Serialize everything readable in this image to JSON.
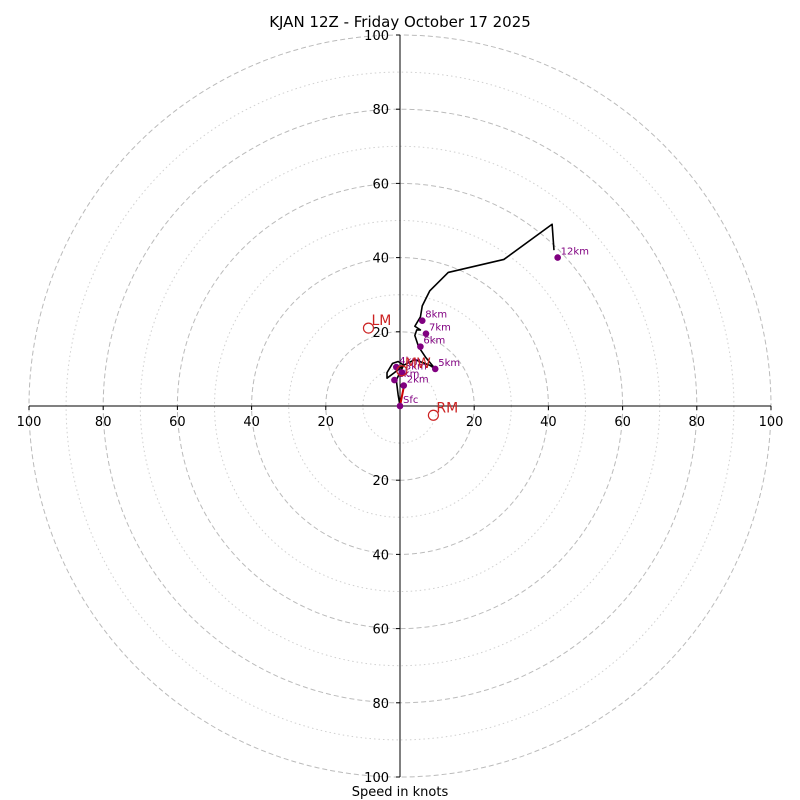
{
  "chart_data": {
    "type": "hodograph",
    "title": "KJAN 12Z - Friday October 17 2025",
    "xlabel": "Speed in knots",
    "range": [
      -100,
      100
    ],
    "rings_major": [
      20,
      40,
      60,
      80,
      100
    ],
    "rings_minor": [
      10,
      30,
      50,
      70,
      90
    ],
    "ticks": {
      "x": [
        {
          "value": -100,
          "label": "100"
        },
        {
          "value": -80,
          "label": "80"
        },
        {
          "value": -60,
          "label": "60"
        },
        {
          "value": -40,
          "label": "40"
        },
        {
          "value": -20,
          "label": "20"
        },
        {
          "value": 20,
          "label": "20"
        },
        {
          "value": 40,
          "label": "40"
        },
        {
          "value": 60,
          "label": "60"
        },
        {
          "value": 80,
          "label": "80"
        },
        {
          "value": 100,
          "label": "100"
        }
      ],
      "y": [
        {
          "value": 100,
          "label": "100"
        },
        {
          "value": 80,
          "label": "80"
        },
        {
          "value": 60,
          "label": "60"
        },
        {
          "value": 40,
          "label": "40"
        },
        {
          "value": 20,
          "label": "20"
        },
        {
          "value": -20,
          "label": "20"
        },
        {
          "value": -40,
          "label": "40"
        },
        {
          "value": -60,
          "label": "60"
        },
        {
          "value": -80,
          "label": "80"
        },
        {
          "value": -100,
          "label": "100"
        }
      ]
    },
    "profile": {
      "color": "#000000",
      "u": [
        0,
        -0.5,
        -1,
        0.5,
        1,
        -0.5,
        -2,
        -3.5,
        -3.5,
        -1.5,
        1,
        4,
        8,
        9.5,
        7,
        5,
        4,
        4.5,
        5.5,
        4,
        5.5,
        6,
        8,
        13,
        28,
        41,
        41.5
      ],
      "v": [
        0,
        3,
        7,
        10,
        11,
        12,
        11.5,
        9,
        7.5,
        9,
        11,
        12.5,
        11,
        10,
        13,
        16,
        19,
        20.5,
        20.5,
        21.5,
        24,
        27,
        31,
        36,
        39.5,
        49,
        42
      ]
    },
    "low_segment": {
      "color": "#cc0000",
      "u": [
        0,
        0.5,
        1.2
      ],
      "v": [
        0,
        2.5,
        6
      ]
    },
    "heights": [
      {
        "label": "Sfc",
        "u": 0,
        "v": 0
      },
      {
        "label": "1km",
        "u": -1.5,
        "v": 7
      },
      {
        "label": "2km",
        "u": 1,
        "v": 5.5
      },
      {
        "label": "3km",
        "u": 0.5,
        "v": 9
      },
      {
        "label": "4km",
        "u": -1,
        "v": 10.5
      },
      {
        "label": "5km",
        "u": 9.5,
        "v": 10
      },
      {
        "label": "6km",
        "u": 5.5,
        "v": 16
      },
      {
        "label": "7km",
        "u": 7,
        "v": 19.5
      },
      {
        "label": "8km",
        "u": 6,
        "v": 23
      },
      {
        "label": "12km",
        "u": 42.5,
        "v": 40
      }
    ],
    "motions": [
      {
        "label": "LM",
        "u": -8.5,
        "v": 21
      },
      {
        "label": "RM",
        "u": 9,
        "v": -2.5
      },
      {
        "label": "MW",
        "u": 0.5,
        "v": 9.5
      }
    ],
    "colors": {
      "grid": "#bbbbbb",
      "grid_minor": "#d0d0d0",
      "axis": "#000000",
      "height_marker": "#800080",
      "motion": "#cc2222"
    }
  }
}
